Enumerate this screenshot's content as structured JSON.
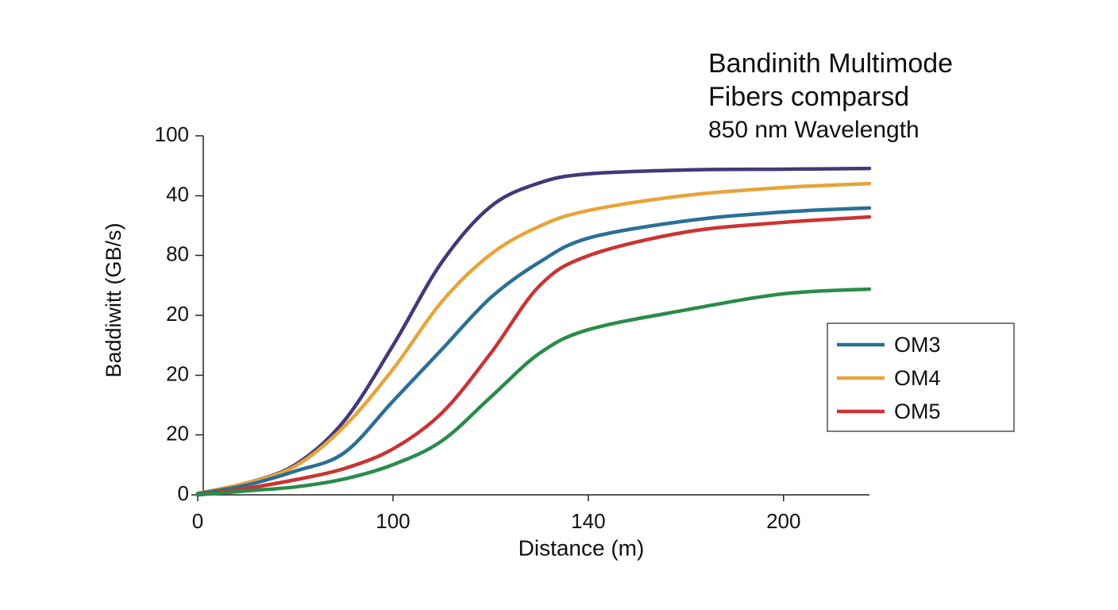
{
  "chart_data": {
    "type": "line",
    "title": [
      "Bandinith Multimode",
      "Fibers comparsd"
    ],
    "subtitle": "850 nm Wavelength",
    "x_label": "Distance (m)",
    "y_label": "Baddiwitt (GB/s)",
    "x": [
      0,
      25,
      50,
      75,
      100,
      125,
      150,
      175,
      200,
      250,
      300,
      344
    ],
    "xlim": [
      0,
      344
    ],
    "xticks": [
      0,
      100,
      {
        "value": 200,
        "label": "140"
      },
      {
        "value": 300,
        "label": "200"
      }
    ],
    "ylim": [
      0,
      100
    ],
    "yticks": [
      0,
      {
        "value": 16.7,
        "label": "20"
      },
      {
        "value": 33.3,
        "label": "20"
      },
      {
        "value": 50,
        "label": "20"
      },
      {
        "value": 66.7,
        "label": "80"
      },
      {
        "value": 83.3,
        "label": "40"
      },
      100
    ],
    "grid": false,
    "legend": "right",
    "series": [
      {
        "color": "#3f3a7a",
        "values": [
          0.4,
          3.3,
          8.4,
          20.6,
          41.6,
          64.8,
          80.3,
          86.9,
          89.4,
          90.5,
          90.7,
          90.9
        ]
      },
      {
        "name": "OM4",
        "color": "#e8a33a",
        "values": [
          0.4,
          3.3,
          8,
          19,
          35,
          53.8,
          67,
          74.8,
          79.2,
          83.4,
          85.6,
          86.7
        ]
      },
      {
        "name": "OM3",
        "color": "#2a6f97",
        "values": [
          0.3,
          2.7,
          6.6,
          11.7,
          26.1,
          40.5,
          54.9,
          64.8,
          71.5,
          76.3,
          78.8,
          79.9
        ]
      },
      {
        "name": "OM5",
        "color": "#cc3333",
        "values": [
          0,
          1.8,
          4.2,
          7.3,
          12.8,
          22.8,
          39.4,
          58.2,
          66.6,
          73.2,
          75.9,
          77.4
        ]
      },
      {
        "color": "#2a8c4a",
        "values": [
          0,
          1.1,
          2.2,
          4.4,
          8.4,
          15,
          27.2,
          39.4,
          46,
          51.5,
          56,
          57.3
        ]
      }
    ]
  }
}
